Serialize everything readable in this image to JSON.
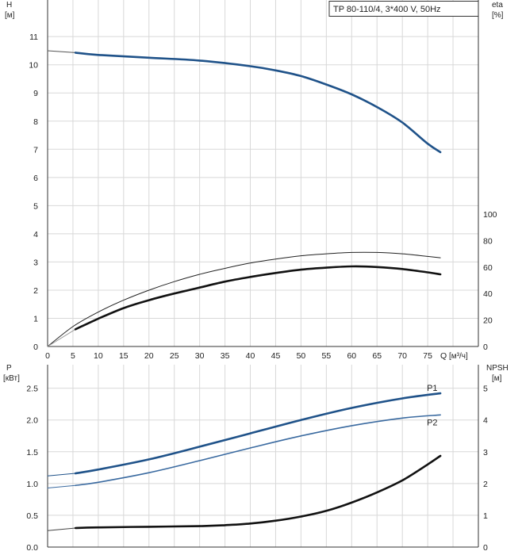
{
  "header_label": "TP 80-110/4, 3*400 V, 50Hz",
  "chart_data": [
    {
      "type": "line",
      "panel": "head-efficiency",
      "x_axis": {
        "name": "Q",
        "unit": "[м³/ч]",
        "ticks": [
          0,
          5,
          10,
          15,
          20,
          25,
          30,
          35,
          40,
          45,
          50,
          55,
          60,
          65,
          70,
          75
        ],
        "lim": [
          0,
          85
        ]
      },
      "y_left": {
        "name": "H",
        "unit": "[м]",
        "ticks": [
          0,
          1,
          2,
          3,
          4,
          5,
          6,
          7,
          8,
          9,
          10,
          11
        ],
        "lim": [
          0,
          12.3
        ]
      },
      "y_right": {
        "name": "eta",
        "unit": "[%]",
        "ticks": [
          0,
          20,
          40,
          60,
          80,
          100
        ],
        "lim": [
          0,
          100
        ]
      },
      "grid": true,
      "series": [
        {
          "axis": "left",
          "style": "thin",
          "color": "#555555",
          "x": [
            0,
            5.5
          ],
          "y": [
            10.5,
            10.43
          ]
        },
        {
          "axis": "left",
          "style": "thick",
          "color": "#1f5289",
          "x": [
            5.5,
            10,
            20,
            30,
            40,
            45,
            50,
            55,
            60,
            65,
            70,
            75,
            77.5
          ],
          "y": [
            10.43,
            10.35,
            10.25,
            10.15,
            9.95,
            9.8,
            9.6,
            9.3,
            8.95,
            8.5,
            7.95,
            7.2,
            6.9
          ]
        },
        {
          "axis": "right",
          "style": "thin",
          "color": "#222222",
          "x": [
            0,
            5,
            10,
            15,
            20,
            25,
            30,
            35,
            40,
            45,
            50,
            55,
            60,
            65,
            70,
            75,
            77.5
          ],
          "y": [
            0,
            15,
            26,
            35,
            42.5,
            49,
            54.5,
            59,
            63,
            66,
            68.5,
            70,
            71,
            71,
            70,
            68,
            67
          ]
        },
        {
          "axis": "right",
          "style": "thin",
          "color": "#999999",
          "x": [
            0,
            5.5
          ],
          "y": [
            0,
            13
          ]
        },
        {
          "axis": "right",
          "style": "thick",
          "color": "#111111",
          "x": [
            5.5,
            10,
            15,
            20,
            25,
            30,
            35,
            40,
            45,
            50,
            55,
            60,
            65,
            70,
            75,
            77.5
          ],
          "y": [
            13,
            21,
            29,
            35,
            40,
            44.5,
            49,
            52.5,
            55.5,
            58,
            59.5,
            60.5,
            60,
            58.5,
            56,
            54.5
          ]
        }
      ]
    },
    {
      "type": "line",
      "panel": "power-npsh",
      "x_axis": {
        "lim": [
          0,
          85
        ]
      },
      "y_left": {
        "name": "P",
        "unit": "[кВт]",
        "ticks": [
          "0.0",
          "0.5",
          "1.0",
          "1.5",
          "2.0",
          "2.5"
        ],
        "lim": [
          0,
          2.87
        ]
      },
      "y_right": {
        "name": "NPSH",
        "unit": "[м]",
        "ticks": [
          0,
          1,
          2,
          3,
          4,
          5
        ],
        "lim": [
          0,
          5.74
        ]
      },
      "grid": true,
      "series": [
        {
          "axis": "left",
          "style": "thin",
          "color": "#1f5289",
          "x": [
            0,
            5.5
          ],
          "y": [
            1.12,
            1.16
          ]
        },
        {
          "name": "P1",
          "axis": "left",
          "style": "thick",
          "color": "#1f5289",
          "x": [
            5.5,
            10,
            20,
            30,
            40,
            50,
            60,
            70,
            77.5
          ],
          "y": [
            1.16,
            1.22,
            1.38,
            1.58,
            1.79,
            2.0,
            2.19,
            2.34,
            2.42
          ]
        },
        {
          "axis": "left",
          "style": "thin",
          "color": "#3a6aa0",
          "x": [
            0,
            5.5
          ],
          "y": [
            0.93,
            0.97
          ]
        },
        {
          "name": "P2",
          "axis": "left",
          "style": "medium",
          "color": "#3a6aa0",
          "x": [
            5.5,
            10,
            20,
            30,
            40,
            50,
            60,
            70,
            77.5
          ],
          "y": [
            0.97,
            1.02,
            1.17,
            1.36,
            1.56,
            1.75,
            1.91,
            2.03,
            2.08
          ]
        },
        {
          "axis": "right",
          "style": "thin",
          "color": "#444444",
          "x": [
            0,
            5.5
          ],
          "y": [
            0.52,
            0.6
          ]
        },
        {
          "axis": "right",
          "style": "thick",
          "color": "#111111",
          "x": [
            5.5,
            10,
            20,
            30,
            35,
            40,
            45,
            50,
            55,
            60,
            65,
            70,
            75,
            77.5
          ],
          "y": [
            0.6,
            0.62,
            0.64,
            0.66,
            0.69,
            0.74,
            0.83,
            0.96,
            1.14,
            1.4,
            1.72,
            2.1,
            2.6,
            2.87
          ]
        }
      ]
    }
  ]
}
